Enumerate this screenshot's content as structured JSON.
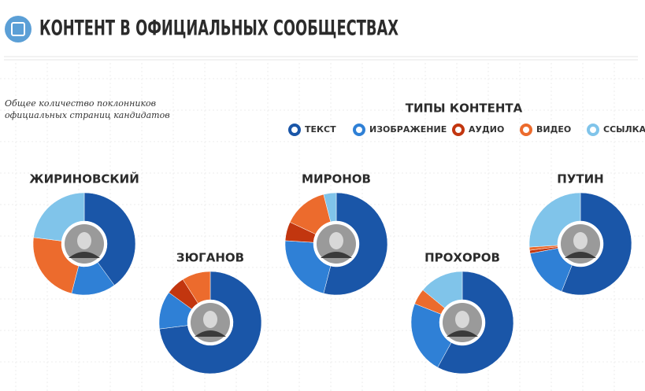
{
  "chart_data": {
    "type": "donut",
    "title": "КОНТЕНТ В ОФИЦИАЛЬНЫХ СООБЩЕСТВАХ",
    "subtitle": "Общее количество поклонников официальных страниц кандидатов",
    "legend_title": "ТИПЫ КОНТЕНТА",
    "categories": [
      "ТЕКСТ",
      "ИЗОБРАЖЕНИЕ",
      "АУДИО",
      "ВИДЕО",
      "ССЫЛКА"
    ],
    "colors": [
      "#1a56a8",
      "#2f80d6",
      "#c2360f",
      "#ec6b2d",
      "#80c4ea"
    ],
    "series": [
      {
        "name": "ЖИРИНОВСКИЙ",
        "values": [
          40,
          14,
          0,
          23,
          23
        ]
      },
      {
        "name": "ЗЮГАНОВ",
        "values": [
          73,
          12,
          6,
          9,
          0
        ]
      },
      {
        "name": "МИРОНОВ",
        "values": [
          54,
          22,
          6,
          14,
          4
        ]
      },
      {
        "name": "ПРОХОРОВ",
        "values": [
          58,
          23,
          0,
          5,
          14
        ]
      },
      {
        "name": "ПУТИН",
        "values": [
          56,
          16,
          1,
          1,
          26
        ]
      }
    ]
  }
}
